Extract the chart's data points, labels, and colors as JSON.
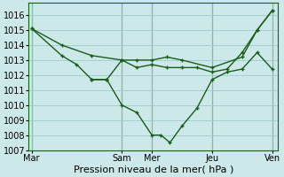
{
  "background_color": "#cce8e8",
  "grid_color": "#99cccc",
  "line_color": "#1a5c1a",
  "xlabel": "Pression niveau de la mer( hPa )",
  "xlabel_fontsize": 8,
  "ylim": [
    1007,
    1016.8
  ],
  "yticks": [
    1007,
    1008,
    1009,
    1010,
    1011,
    1012,
    1013,
    1014,
    1015,
    1016
  ],
  "ytick_fontsize": 7,
  "xtick_labels": [
    "Mar",
    "Sam",
    "Mer",
    "Jeu",
    "Ven"
  ],
  "xtick_positions": [
    0,
    3,
    4,
    6,
    8
  ],
  "vline_positions": [
    0,
    3,
    4,
    6,
    8
  ],
  "xlim": [
    -0.1,
    8.2
  ],
  "line1_x": [
    0,
    1,
    2,
    3,
    3.5,
    4,
    4.5,
    5,
    6,
    7,
    7.5,
    8
  ],
  "line1_y": [
    1015.1,
    1014.0,
    1013.3,
    1013.0,
    1013.0,
    1013.0,
    1013.2,
    1013.0,
    1012.5,
    1013.2,
    1015.0,
    1016.3
  ],
  "line2_x": [
    0,
    1,
    1.5,
    2,
    2.5,
    3,
    3.5,
    4,
    4.5,
    5,
    5.5,
    6,
    6.5,
    7,
    7.5,
    8
  ],
  "line2_y": [
    1015.1,
    1013.3,
    1012.7,
    1011.7,
    1011.7,
    1013.0,
    1012.5,
    1012.7,
    1012.5,
    1012.5,
    1012.5,
    1012.2,
    1012.4,
    1013.5,
    1015.0,
    1016.3
  ],
  "line3_x": [
    2,
    2.5,
    3,
    3.5,
    4,
    4.3,
    4.6,
    5,
    5.5,
    6,
    6.5,
    7,
    7.5,
    8
  ],
  "line3_y": [
    1011.7,
    1011.7,
    1010.0,
    1009.5,
    1008.0,
    1008.0,
    1007.5,
    1008.6,
    1009.8,
    1011.7,
    1012.2,
    1012.4,
    1013.5,
    1012.4
  ],
  "lw": 1.0,
  "ms": 3.5
}
